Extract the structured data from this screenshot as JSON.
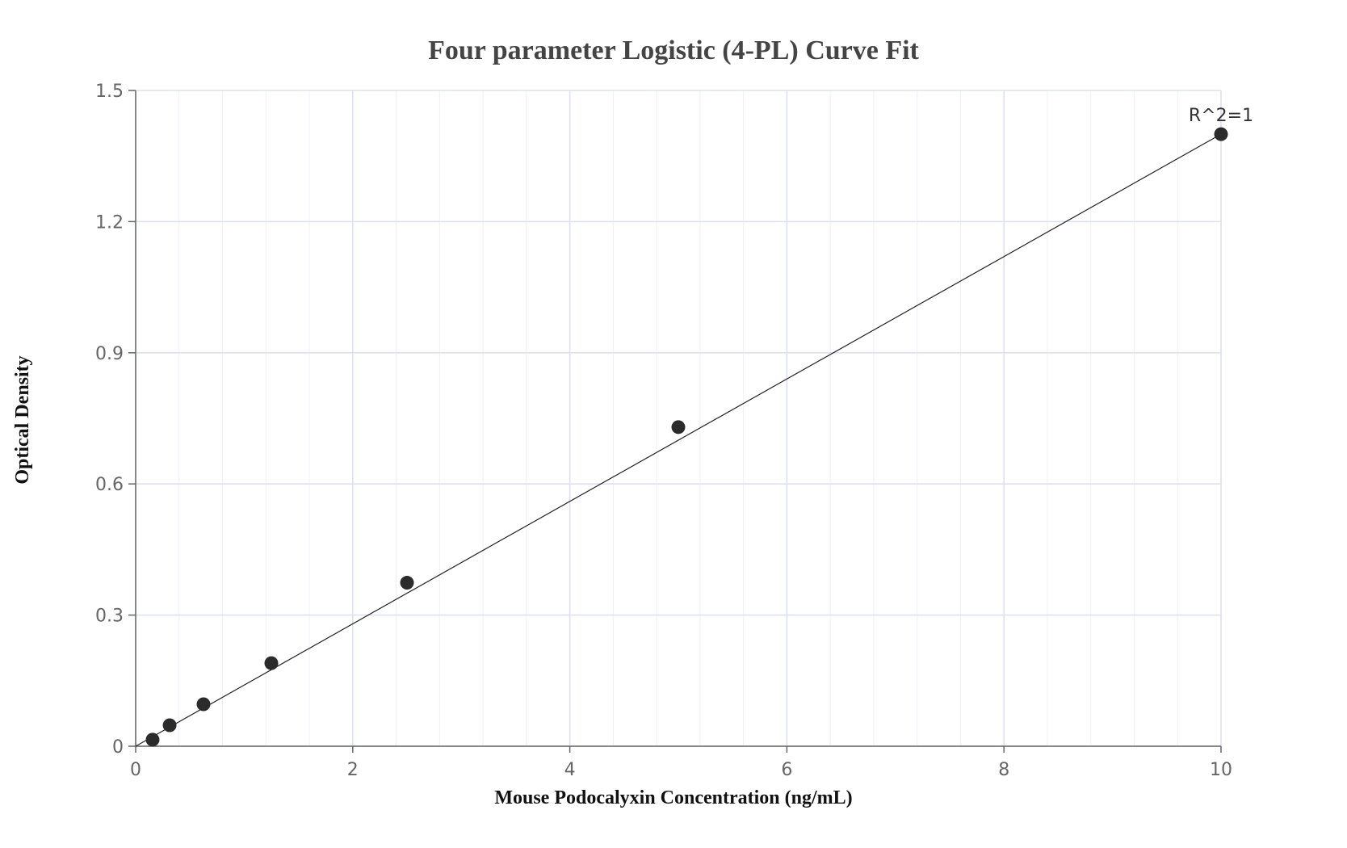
{
  "chart_data": {
    "type": "scatter",
    "title": "Four parameter Logistic (4-PL) Curve Fit",
    "xlabel": "Mouse Podocalyxin Concentration (ng/mL)",
    "ylabel": "Optical Density",
    "xlim": [
      0,
      10
    ],
    "ylim": [
      0,
      1.5
    ],
    "x_ticks": [
      0,
      2,
      4,
      6,
      8,
      10
    ],
    "y_ticks": [
      0,
      0.3,
      0.6,
      0.9,
      1.2,
      1.5
    ],
    "x_tick_labels": [
      "0",
      "2",
      "4",
      "6",
      "8",
      "10"
    ],
    "y_tick_labels": [
      "0",
      "0.3",
      "0.6",
      "0.9",
      "1.2",
      "1.5"
    ],
    "x_minor_step": 0.4,
    "y_minor_step": 0.3,
    "grid": true,
    "points": {
      "x": [
        0.156,
        0.313,
        0.625,
        1.25,
        2.5,
        5,
        10
      ],
      "y": [
        0.015,
        0.048,
        0.096,
        0.19,
        0.374,
        0.73,
        1.4
      ]
    },
    "fit_curve": {
      "x": [
        0,
        10
      ],
      "y": [
        0,
        1.4
      ]
    },
    "annotation": {
      "text": "R^2=1",
      "x": 10,
      "y": 1.4
    }
  },
  "colors": {
    "points": "#2b2b2b",
    "fit_line": "#222222",
    "grid": "#dde1ee"
  }
}
